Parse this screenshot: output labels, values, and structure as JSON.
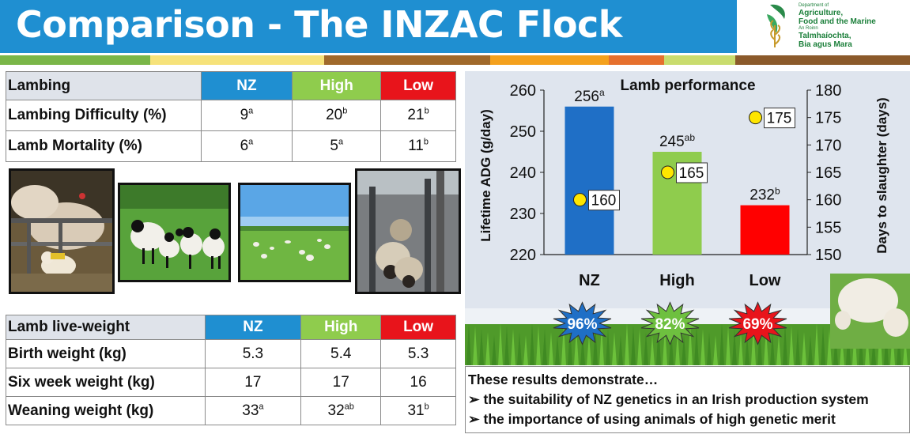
{
  "header": {
    "title": "Comparison - The INZAC Flock",
    "logo": {
      "line1": "Department of",
      "line2": "Agriculture,",
      "line3": "Food and the Marine",
      "line4": "An Roinn",
      "line5": "Talmhaíochta,",
      "line6": "Bia agus Mara"
    }
  },
  "colors": {
    "nz": "#1f8fd1",
    "high": "#8fcc4d",
    "low": "#e8141b",
    "header": "#1f8fd1"
  },
  "lambing_table": {
    "headers": [
      "Lambing",
      "NZ",
      "High",
      "Low"
    ],
    "rows": [
      {
        "label": "Lambing Difficulty (%)",
        "values": [
          {
            "v": "9",
            "s": "a"
          },
          {
            "v": "20",
            "s": "b"
          },
          {
            "v": "21",
            "s": "b"
          }
        ]
      },
      {
        "label": "Lamb Mortality (%)",
        "values": [
          {
            "v": "6",
            "s": "a"
          },
          {
            "v": "5",
            "s": "a"
          },
          {
            "v": "11",
            "s": "b"
          }
        ]
      }
    ]
  },
  "weight_table": {
    "headers": [
      "Lamb live-weight",
      "NZ",
      "High",
      "Low"
    ],
    "rows": [
      {
        "label": "Birth weight (kg)",
        "values": [
          {
            "v": "5.3",
            "s": ""
          },
          {
            "v": "5.4",
            "s": ""
          },
          {
            "v": "5.3",
            "s": ""
          }
        ]
      },
      {
        "label": "Six week weight (kg)",
        "values": [
          {
            "v": "17",
            "s": ""
          },
          {
            "v": "17",
            "s": ""
          },
          {
            "v": "16",
            "s": ""
          }
        ]
      },
      {
        "label": "Weaning weight (kg)",
        "values": [
          {
            "v": "33",
            "s": "a"
          },
          {
            "v": "32",
            "s": "ab"
          },
          {
            "v": "31",
            "s": "b"
          }
        ]
      }
    ]
  },
  "chart_data": {
    "type": "bar",
    "title": "Lamb performance",
    "categories": [
      "NZ",
      "High",
      "Low"
    ],
    "series": [
      {
        "values": [
          256,
          245,
          232
        ],
        "labels": [
          "256",
          "245",
          "232"
        ],
        "superscripts": [
          "a",
          "ab",
          "b"
        ],
        "colors": [
          "#1f6fc6",
          "#8fcc4d",
          "#ff0000"
        ]
      },
      {
        "type": "scatter",
        "values": [
          160,
          165,
          175
        ],
        "labels": [
          "160",
          "165",
          "175"
        ]
      }
    ],
    "ylabel": "Lifetime ADG (g/day)",
    "y2label": "Days to slaughter (days)",
    "ylim": [
      220,
      260
    ],
    "y2lim": [
      150,
      180
    ],
    "yticks": [
      220,
      230,
      240,
      250,
      260
    ],
    "y2ticks": [
      150,
      155,
      160,
      165,
      170,
      175,
      180
    ],
    "badges": [
      "96%",
      "82%",
      "69%"
    ],
    "badge_colors": [
      "#1f6fc6",
      "#6ec03f",
      "#e8141b"
    ]
  },
  "conclusion": {
    "intro": "These results demonstrate…",
    "bullets": [
      "the suitability of NZ genetics in an Irish production system",
      "the importance of using animals of high genetic merit"
    ]
  }
}
